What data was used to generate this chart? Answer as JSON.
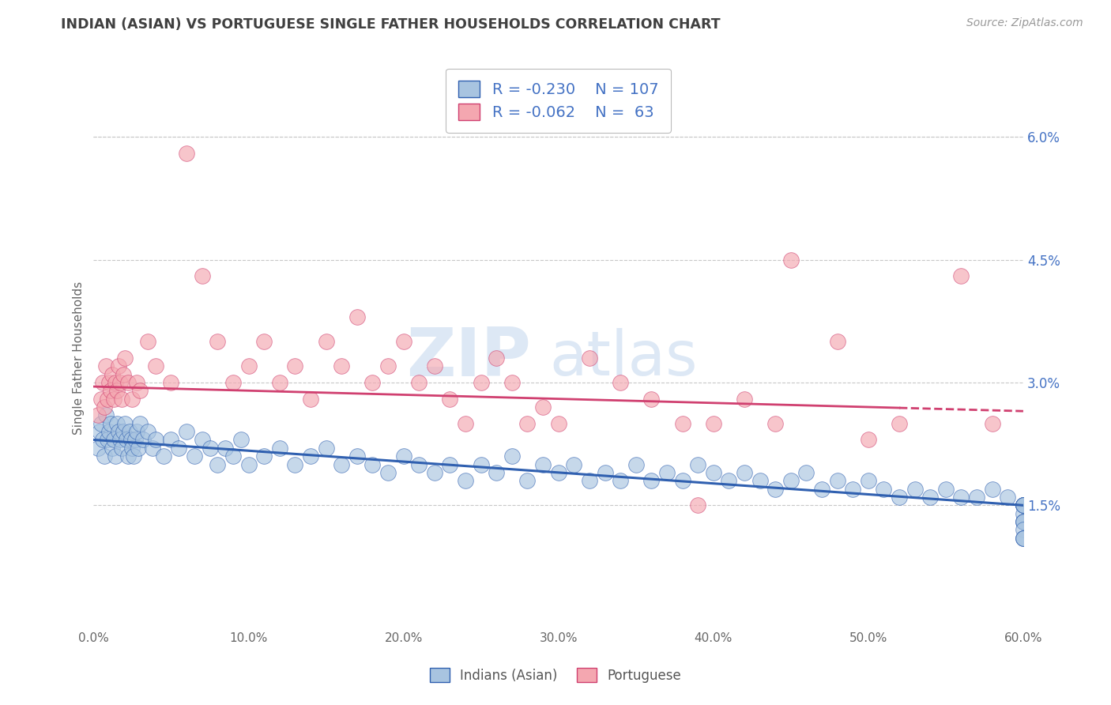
{
  "title": "INDIAN (ASIAN) VS PORTUGUESE SINGLE FATHER HOUSEHOLDS CORRELATION CHART",
  "source": "Source: ZipAtlas.com",
  "ylabel": "Single Father Households",
  "xlabel_ticks": [
    "0.0%",
    "10.0%",
    "20.0%",
    "30.0%",
    "40.0%",
    "50.0%",
    "60.0%"
  ],
  "xlabel_vals": [
    0,
    10,
    20,
    30,
    40,
    50,
    60
  ],
  "ytick_labels": [
    "1.5%",
    "3.0%",
    "4.5%",
    "6.0%"
  ],
  "ytick_vals": [
    1.5,
    3.0,
    4.5,
    6.0
  ],
  "xmin": 0,
  "xmax": 60,
  "ymin": 0.0,
  "ymax": 6.6,
  "indian_R": -0.23,
  "indian_N": 107,
  "portuguese_R": -0.062,
  "portuguese_N": 63,
  "indian_color": "#a8c4e0",
  "portuguese_color": "#f4a7b0",
  "indian_line_color": "#3060b0",
  "portuguese_line_color": "#d04070",
  "legend_label_indian": "Indians (Asian)",
  "legend_label_portuguese": "Portuguese",
  "background_color": "#ffffff",
  "grid_color": "#c8c8c8",
  "title_color": "#404040",
  "indian_line_start_y": 2.3,
  "indian_line_end_y": 1.5,
  "portuguese_line_start_y": 2.95,
  "portuguese_line_end_y": 2.65,
  "indian_x": [
    0.3,
    0.4,
    0.5,
    0.6,
    0.7,
    0.8,
    0.9,
    1.0,
    1.1,
    1.2,
    1.3,
    1.4,
    1.5,
    1.6,
    1.7,
    1.8,
    1.9,
    2.0,
    2.1,
    2.2,
    2.3,
    2.4,
    2.5,
    2.6,
    2.7,
    2.8,
    2.9,
    3.0,
    3.2,
    3.5,
    3.8,
    4.0,
    4.5,
    5.0,
    5.5,
    6.0,
    6.5,
    7.0,
    7.5,
    8.0,
    8.5,
    9.0,
    9.5,
    10.0,
    11.0,
    12.0,
    13.0,
    14.0,
    15.0,
    16.0,
    17.0,
    18.0,
    19.0,
    20.0,
    21.0,
    22.0,
    23.0,
    24.0,
    25.0,
    26.0,
    27.0,
    28.0,
    29.0,
    30.0,
    31.0,
    32.0,
    33.0,
    34.0,
    35.0,
    36.0,
    37.0,
    38.0,
    39.0,
    40.0,
    41.0,
    42.0,
    43.0,
    44.0,
    45.0,
    46.0,
    47.0,
    48.0,
    49.0,
    50.0,
    51.0,
    52.0,
    53.0,
    54.0,
    55.0,
    56.0,
    57.0,
    58.0,
    59.0,
    60.0,
    60.0,
    60.0,
    60.0,
    60.0,
    60.0,
    60.0,
    60.0,
    60.0,
    60.0,
    60.0,
    60.0,
    60.0,
    60.0
  ],
  "indian_y": [
    2.2,
    2.4,
    2.5,
    2.3,
    2.1,
    2.6,
    2.3,
    2.4,
    2.5,
    2.2,
    2.3,
    2.1,
    2.5,
    2.4,
    2.3,
    2.2,
    2.4,
    2.5,
    2.3,
    2.1,
    2.4,
    2.3,
    2.2,
    2.1,
    2.3,
    2.4,
    2.2,
    2.5,
    2.3,
    2.4,
    2.2,
    2.3,
    2.1,
    2.3,
    2.2,
    2.4,
    2.1,
    2.3,
    2.2,
    2.0,
    2.2,
    2.1,
    2.3,
    2.0,
    2.1,
    2.2,
    2.0,
    2.1,
    2.2,
    2.0,
    2.1,
    2.0,
    1.9,
    2.1,
    2.0,
    1.9,
    2.0,
    1.8,
    2.0,
    1.9,
    2.1,
    1.8,
    2.0,
    1.9,
    2.0,
    1.8,
    1.9,
    1.8,
    2.0,
    1.8,
    1.9,
    1.8,
    2.0,
    1.9,
    1.8,
    1.9,
    1.8,
    1.7,
    1.8,
    1.9,
    1.7,
    1.8,
    1.7,
    1.8,
    1.7,
    1.6,
    1.7,
    1.6,
    1.7,
    1.6,
    1.6,
    1.7,
    1.6,
    1.5,
    1.5,
    1.5,
    1.5,
    1.4,
    1.5,
    1.5,
    1.3,
    1.3,
    1.3,
    1.2,
    1.1,
    1.1,
    1.1
  ],
  "port_x": [
    0.3,
    0.5,
    0.6,
    0.7,
    0.8,
    0.9,
    1.0,
    1.1,
    1.2,
    1.3,
    1.4,
    1.5,
    1.6,
    1.7,
    1.8,
    1.9,
    2.0,
    2.2,
    2.5,
    2.8,
    3.0,
    3.5,
    4.0,
    5.0,
    6.0,
    7.0,
    8.0,
    9.0,
    10.0,
    11.0,
    12.0,
    13.0,
    14.0,
    15.0,
    16.0,
    17.0,
    18.0,
    19.0,
    20.0,
    21.0,
    22.0,
    23.0,
    24.0,
    25.0,
    26.0,
    27.0,
    28.0,
    29.0,
    30.0,
    32.0,
    34.0,
    36.0,
    38.0,
    39.0,
    40.0,
    42.0,
    44.0,
    45.0,
    48.0,
    50.0,
    52.0,
    56.0,
    58.0
  ],
  "port_y": [
    2.6,
    2.8,
    3.0,
    2.7,
    3.2,
    2.8,
    3.0,
    2.9,
    3.1,
    2.8,
    3.0,
    2.9,
    3.2,
    3.0,
    2.8,
    3.1,
    3.3,
    3.0,
    2.8,
    3.0,
    2.9,
    3.5,
    3.2,
    3.0,
    5.8,
    4.3,
    3.5,
    3.0,
    3.2,
    3.5,
    3.0,
    3.2,
    2.8,
    3.5,
    3.2,
    3.8,
    3.0,
    3.2,
    3.5,
    3.0,
    3.2,
    2.8,
    2.5,
    3.0,
    3.3,
    3.0,
    2.5,
    2.7,
    2.5,
    3.3,
    3.0,
    2.8,
    2.5,
    1.5,
    2.5,
    2.8,
    2.5,
    4.5,
    3.5,
    2.3,
    2.5,
    4.3,
    2.5
  ]
}
